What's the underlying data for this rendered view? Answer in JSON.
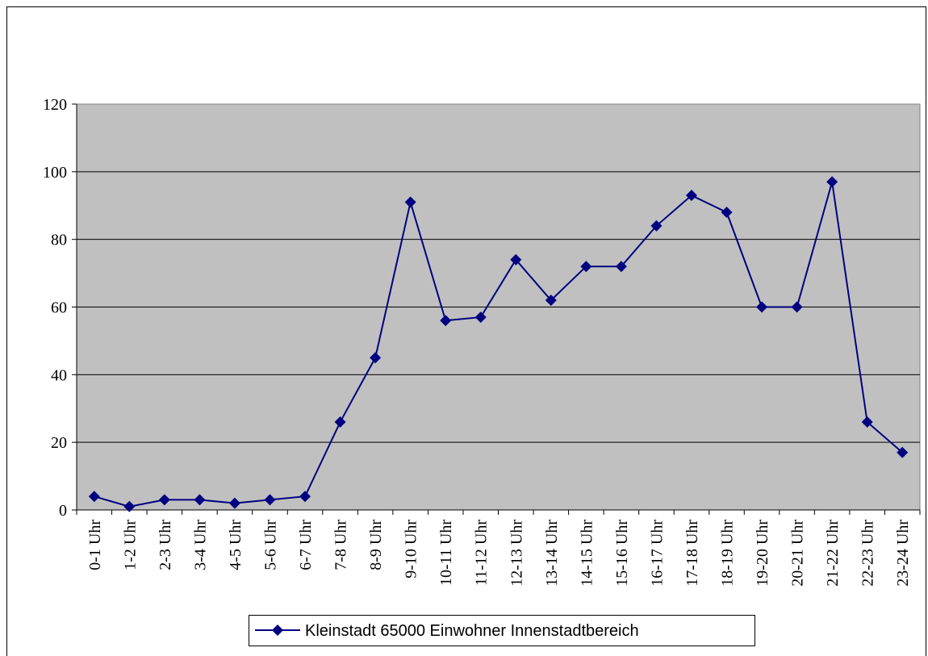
{
  "chart_data": {
    "type": "line",
    "categories": [
      "0-1 Uhr",
      "1-2 Uhr",
      "2-3 Uhr",
      "3-4 Uhr",
      "4-5 Uhr",
      "5-6 Uhr",
      "6-7 Uhr",
      "7-8 Uhr",
      "8-9 Uhr",
      "9-10 Uhr",
      "10-11 Uhr",
      "11-12 Uhr",
      "12-13 Uhr",
      "13-14 Uhr",
      "14-15 Uhr",
      "15-16 Uhr",
      "16-17 Uhr",
      "17-18 Uhr",
      "18-19 Uhr",
      "19-20 Uhr",
      "20-21 Uhr",
      "21-22 Uhr",
      "22-23 Uhr",
      "23-24 Uhr"
    ],
    "series": [
      {
        "name": "Kleinstadt 65000 Einwohner Innenstadtbereich",
        "color": "#000080",
        "values": [
          4,
          1,
          3,
          3,
          2,
          3,
          4,
          26,
          45,
          91,
          56,
          57,
          74,
          62,
          72,
          72,
          84,
          93,
          88,
          60,
          60,
          97,
          26,
          17
        ]
      }
    ],
    "ylim": [
      0,
      120
    ],
    "yticks": [
      0,
      20,
      40,
      60,
      80,
      100,
      120
    ],
    "grid": true,
    "legend": "bottom"
  }
}
